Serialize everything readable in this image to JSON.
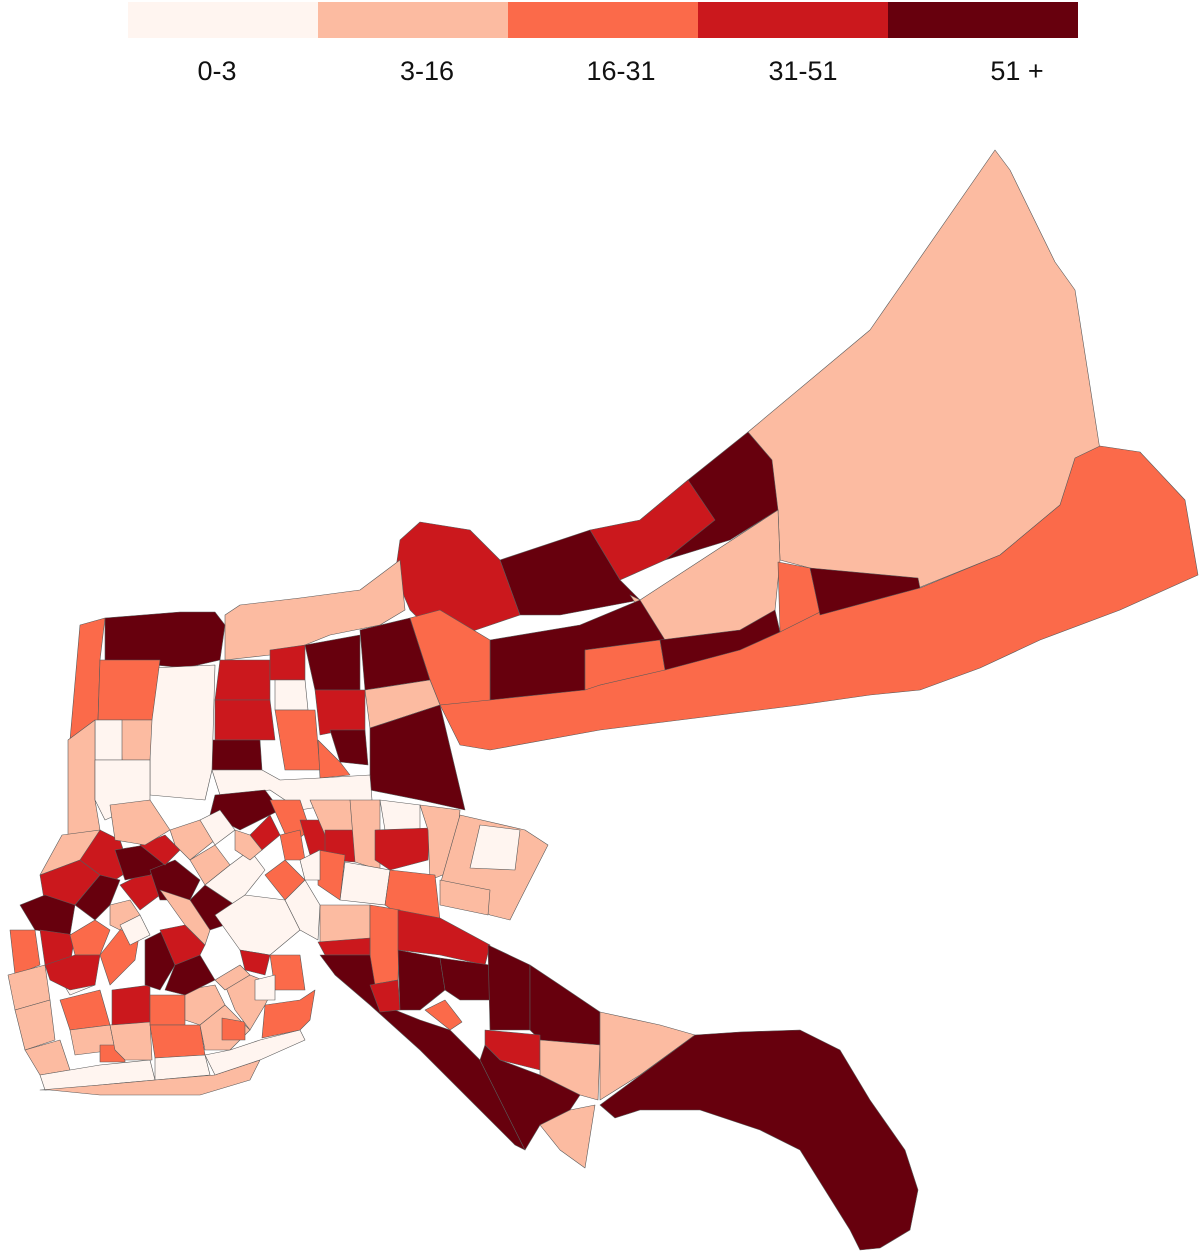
{
  "legend": {
    "classes": [
      {
        "label": "0-3",
        "color": "#fff5f0"
      },
      {
        "label": "3-16",
        "color": "#fcbba1"
      },
      {
        "label": "16-31",
        "color": "#fb6a4a"
      },
      {
        "label": "31-51",
        "color": "#cb181d"
      },
      {
        "label": "51 +",
        "color": "#67000d"
      }
    ]
  },
  "map": {
    "type": "choropleth",
    "classes_breaks": [
      "0-3",
      "3-16",
      "16-31",
      "31-51",
      "51 +"
    ],
    "outline_color": "#5a5a5a"
  }
}
